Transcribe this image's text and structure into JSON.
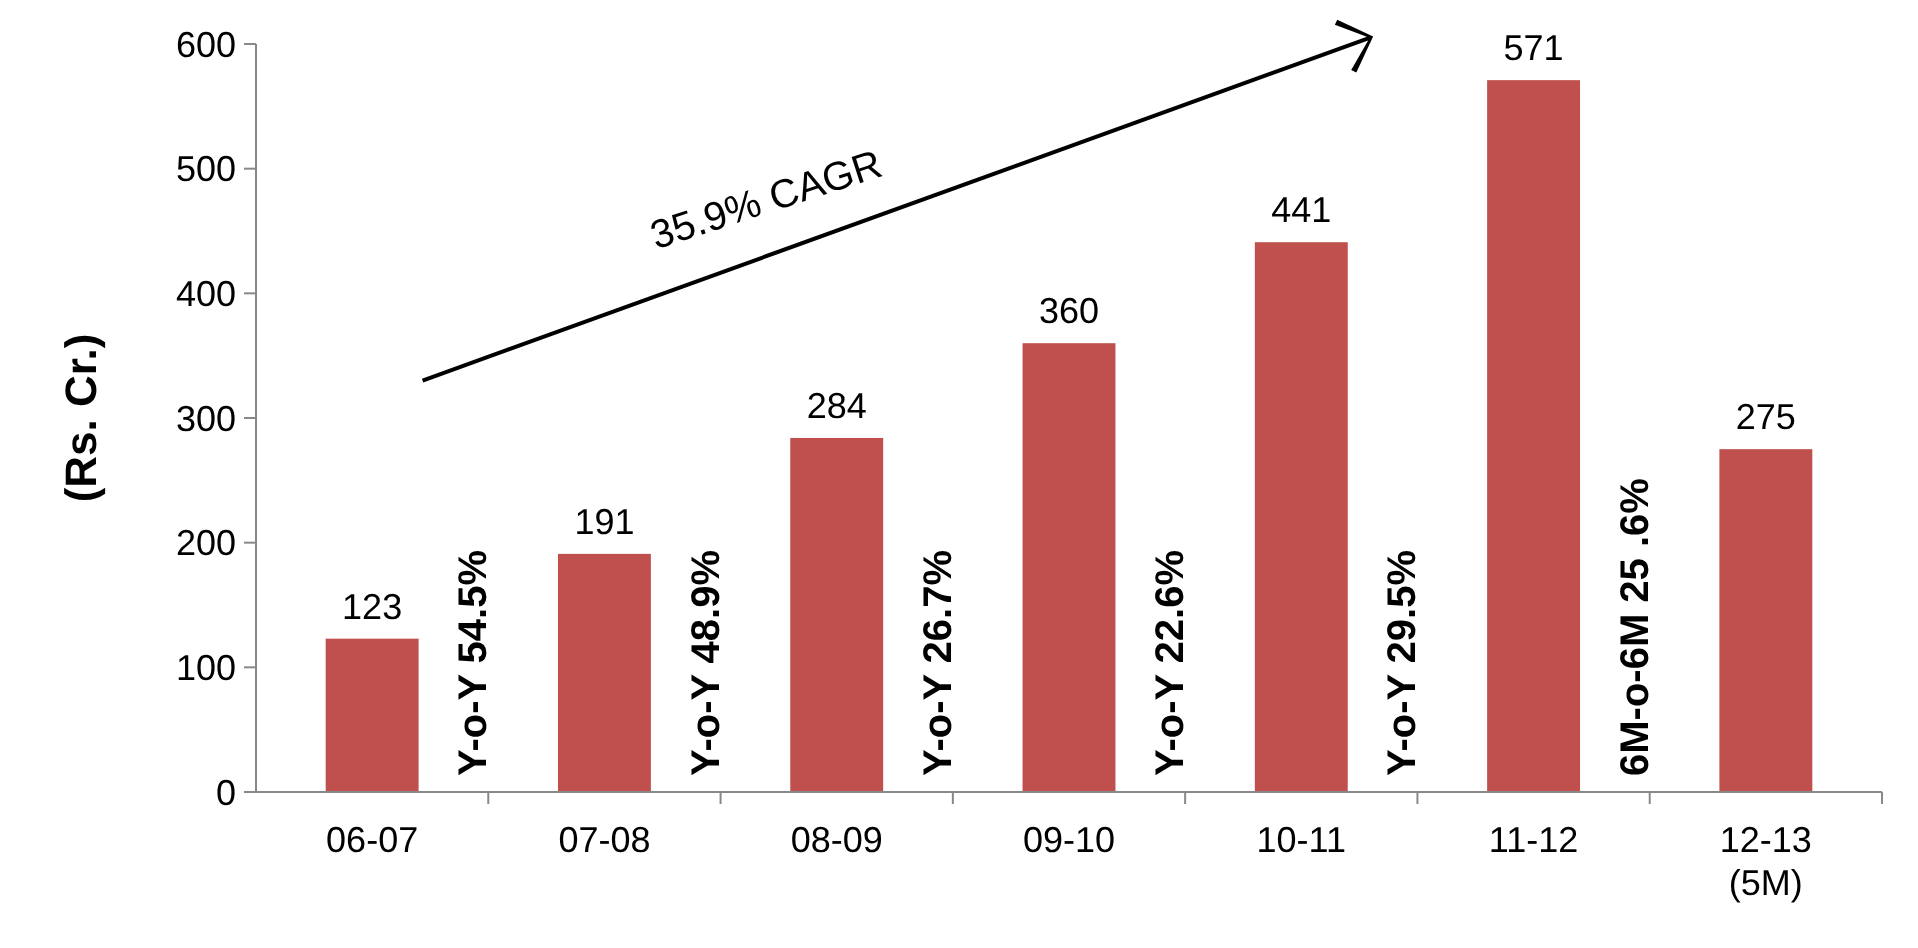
{
  "chart_data": {
    "type": "bar",
    "ylabel": "(Rs. Cr.)",
    "categories": [
      "06-07",
      "07-08",
      "08-09",
      "09-10",
      "10-11",
      "11-12",
      "12-13\n(5M)"
    ],
    "values": [
      123,
      191,
      284,
      360,
      441,
      571,
      275
    ],
    "color": "#c0504d",
    "ylim": [
      0,
      600
    ],
    "yticks": [
      0,
      100,
      200,
      300,
      400,
      500,
      600
    ],
    "data_labels": true,
    "grid": false,
    "annotations": [
      "35.9% CAGR",
      "Y-o-Y 54.5%",
      "Y-o-Y 48.9%",
      "Y-o-Y 26.7%",
      "Y-o-Y 22.6%",
      "Y-o-Y 29.5%",
      "6M-o-6M 25 .6%"
    ]
  }
}
